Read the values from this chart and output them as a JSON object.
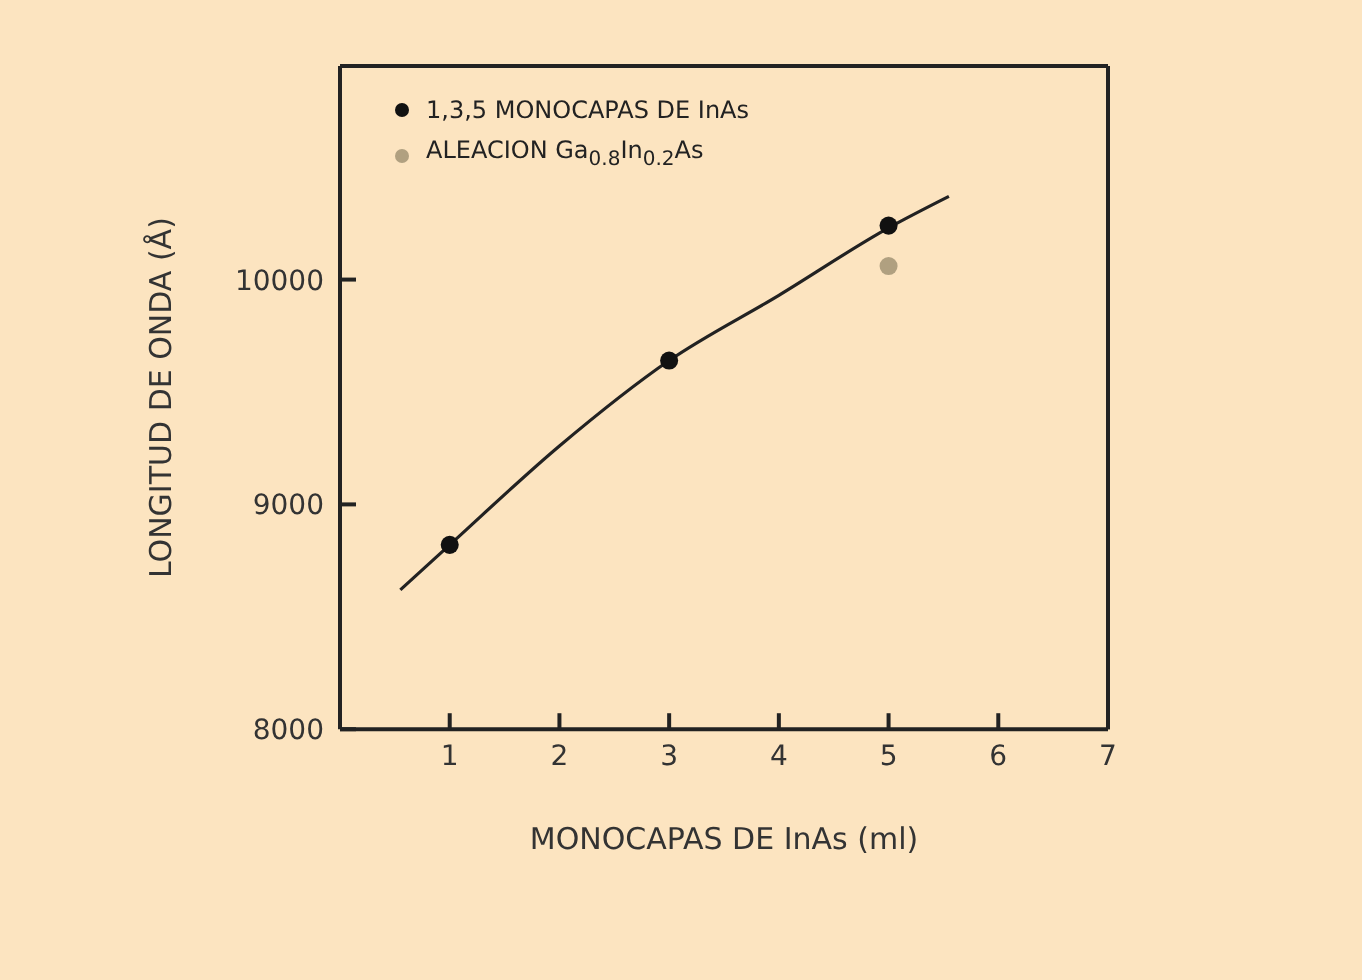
{
  "chart_data": {
    "type": "scatter",
    "xlabel": "MONOCAPAS DE InAs (ml)",
    "ylabel": "LONGITUD DE ONDA (Å)",
    "xlim": [
      0,
      7
    ],
    "xticks": [
      1,
      2,
      3,
      4,
      5,
      6,
      7
    ],
    "ylim": [
      8000,
      10950
    ],
    "yticks": [
      8000,
      9000,
      10000
    ],
    "legend": "top left",
    "marker": "circle",
    "series": [
      {
        "name": "1,3,5 MONOCAPAS DE InAs",
        "color": "#111111",
        "x": [
          1,
          3,
          5
        ],
        "values": [
          8820,
          9640,
          10240
        ]
      },
      {
        "name": "ALEACION Ga$_{0.8}$In$_{0.2}$As",
        "color": "#b0a080",
        "x": [
          5
        ],
        "values": [
          10060
        ]
      },
      {
        "type": "line",
        "color": "#222222",
        "x": [
          0.55,
          1,
          2,
          3,
          4,
          5,
          5.55
        ],
        "values": [
          8620,
          8820,
          9260,
          9640,
          9930,
          10230,
          10370
        ],
        "line_style": "solid",
        "marker": "none"
      }
    ]
  }
}
